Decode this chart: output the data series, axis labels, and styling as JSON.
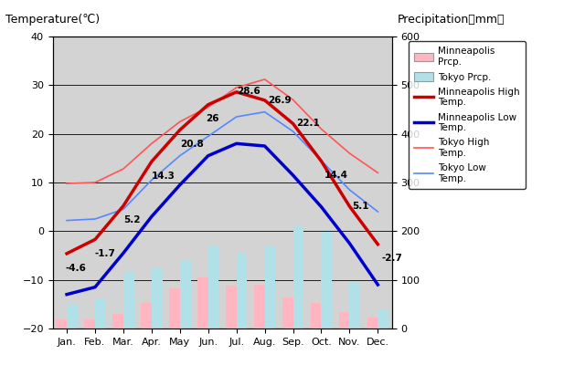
{
  "months": [
    "Jan.",
    "Feb.",
    "Mar.",
    "Apr.",
    "May",
    "Jun.",
    "Jul.",
    "Aug.",
    "Sep.",
    "Oct.",
    "Nov.",
    "Dec."
  ],
  "minneapolis_high": [
    -4.6,
    -1.7,
    5.2,
    14.3,
    20.8,
    26.0,
    28.6,
    26.9,
    22.1,
    14.4,
    5.1,
    -2.7
  ],
  "minneapolis_low": [
    -13.0,
    -11.5,
    -4.5,
    3.0,
    9.5,
    15.5,
    18.0,
    17.5,
    11.5,
    5.0,
    -2.5,
    -11.0
  ],
  "tokyo_high": [
    9.8,
    10.0,
    12.8,
    18.0,
    22.5,
    25.5,
    29.5,
    31.2,
    27.0,
    21.0,
    16.0,
    12.0
  ],
  "tokyo_low": [
    2.2,
    2.5,
    4.5,
    10.5,
    15.5,
    19.5,
    23.5,
    24.5,
    20.5,
    14.5,
    8.5,
    4.0
  ],
  "minneapolis_precip": [
    19,
    18,
    30,
    52,
    82,
    105,
    88,
    90,
    64,
    52,
    33,
    22
  ],
  "tokyo_precip": [
    48,
    60,
    117,
    125,
    138,
    168,
    154,
    168,
    210,
    198,
    93,
    40
  ],
  "minneapolis_high_color": "#cc0000",
  "minneapolis_low_color": "#0000cc",
  "tokyo_high_color": "#ff5555",
  "tokyo_low_color": "#5588ff",
  "minneapolis_precip_color": "#ffb6c1",
  "tokyo_precip_color": "#b0e0e8",
  "bg_color": "#d3d3d3",
  "temp_ylim": [
    -20,
    40
  ],
  "precip_ylim": [
    0,
    600
  ],
  "title_left": "Temperature(℃)",
  "title_right": "Precipitation（mm）",
  "annot_data": [
    [
      0,
      -4.6,
      "-4.6",
      -0.05,
      -2.0,
      "left"
    ],
    [
      1,
      -1.7,
      "-1.7",
      0.0,
      -2.0,
      "left"
    ],
    [
      2,
      5.2,
      "5.2",
      0.0,
      -2.0,
      "left"
    ],
    [
      3,
      14.3,
      "14.3",
      0.0,
      -2.0,
      "left"
    ],
    [
      4,
      20.8,
      "20.8",
      0.0,
      -2.0,
      "left"
    ],
    [
      5,
      26.0,
      "26",
      -0.1,
      -2.0,
      "left"
    ],
    [
      6,
      28.6,
      "28.6",
      0.0,
      1.0,
      "left"
    ],
    [
      7,
      26.9,
      "26.9",
      0.1,
      1.0,
      "left"
    ],
    [
      8,
      22.1,
      "22.1",
      0.1,
      1.0,
      "left"
    ],
    [
      9,
      14.4,
      "14.4",
      0.1,
      -2.0,
      "left"
    ],
    [
      10,
      5.1,
      "5.1",
      0.1,
      1.0,
      "left"
    ],
    [
      11,
      -2.7,
      "-2.7",
      0.15,
      -2.0,
      "left"
    ]
  ]
}
